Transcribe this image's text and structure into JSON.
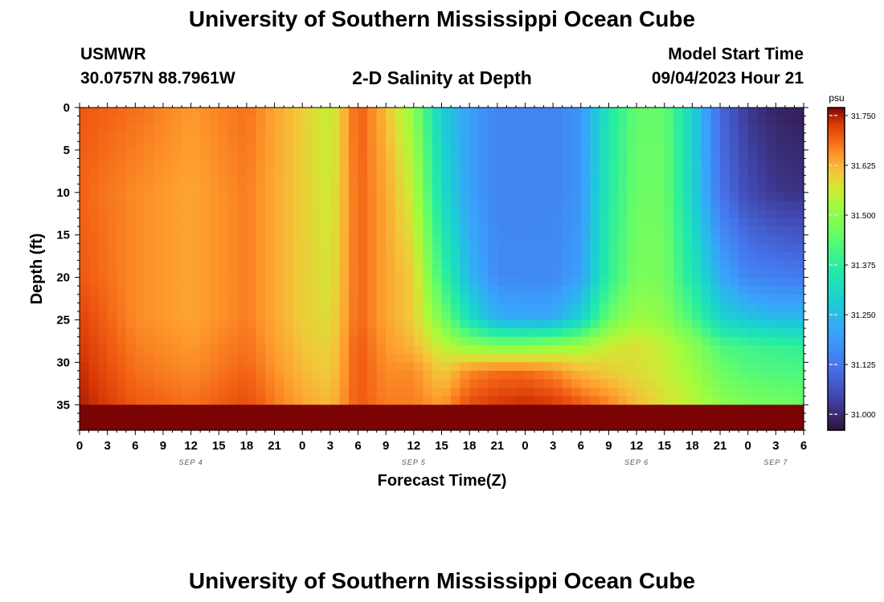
{
  "header": {
    "title_top": "University of Southern Mississippi Ocean Cube",
    "station_id": "USMWR",
    "coordinates": "30.0757N  88.7961W",
    "plot_title": "2-D Salinity at Depth",
    "model_start_label": "Model Start Time",
    "model_start_value": "09/04/2023 Hour 21"
  },
  "footer": {
    "title_bottom": "University of Southern Mississippi Ocean Cube"
  },
  "chart_data": {
    "type": "heatmap",
    "xlabel": "Forecast Time(Z)",
    "ylabel": "Depth (ft)",
    "colorbar_unit": "psu",
    "x_ticks": [
      "0",
      "3",
      "6",
      "9",
      "12",
      "15",
      "18",
      "21",
      "0",
      "3",
      "6",
      "9",
      "12",
      "15",
      "18",
      "21",
      "0",
      "3",
      "6",
      "9",
      "12",
      "15",
      "18",
      "21",
      "0",
      "3",
      "6"
    ],
    "date_labels": [
      {
        "label": "SEP 4",
        "tick": 4
      },
      {
        "label": "SEP 5",
        "tick": 12
      },
      {
        "label": "SEP 6",
        "tick": 20
      },
      {
        "label": "SEP 7",
        "tick": 25
      }
    ],
    "y_ticks": [
      "0",
      "5",
      "10",
      "15",
      "20",
      "25",
      "30",
      "35"
    ],
    "y_range": [
      0,
      38
    ],
    "colorbar_ticks": [
      "31.000",
      "31.125",
      "31.250",
      "31.375",
      "31.500",
      "31.625",
      "31.750"
    ],
    "value_range": [
      30.96,
      31.77
    ],
    "depths_ft": [
      0,
      10,
      20,
      25,
      28,
      31,
      35,
      38
    ],
    "times_h": [
      0,
      6,
      12,
      18,
      24,
      27,
      30,
      33,
      36,
      39,
      42,
      45,
      48,
      51,
      54,
      57,
      60,
      63,
      66,
      69,
      72,
      75,
      78
    ],
    "salinity_psu": [
      [
        31.7,
        31.69,
        31.7,
        31.72,
        31.73,
        31.74,
        31.75
      ],
      [
        31.68,
        31.66,
        31.66,
        31.66,
        31.67,
        31.68,
        31.7
      ],
      [
        31.65,
        31.64,
        31.64,
        31.64,
        31.65,
        31.66,
        31.68
      ],
      [
        31.68,
        31.67,
        31.67,
        31.67,
        31.68,
        31.69,
        31.71
      ],
      [
        31.6,
        31.6,
        31.6,
        31.6,
        31.61,
        31.62,
        31.64
      ],
      [
        31.55,
        31.56,
        31.57,
        31.58,
        31.59,
        31.6,
        31.62
      ],
      [
        31.7,
        31.69,
        31.69,
        31.69,
        31.7,
        31.7,
        31.7
      ],
      [
        31.62,
        31.64,
        31.64,
        31.64,
        31.65,
        31.66,
        31.67
      ],
      [
        31.5,
        31.55,
        31.6,
        31.6,
        31.62,
        31.66,
        31.67
      ],
      [
        31.28,
        31.32,
        31.4,
        31.48,
        31.55,
        31.6,
        31.65
      ],
      [
        31.2,
        31.2,
        31.24,
        31.33,
        31.5,
        31.66,
        31.71
      ],
      [
        31.15,
        31.15,
        31.16,
        31.23,
        31.48,
        31.68,
        31.73
      ],
      [
        31.15,
        31.15,
        31.16,
        31.22,
        31.48,
        31.68,
        31.74
      ],
      [
        31.15,
        31.15,
        31.16,
        31.22,
        31.5,
        31.66,
        31.73
      ],
      [
        31.18,
        31.18,
        31.2,
        31.3,
        31.52,
        31.62,
        31.7
      ],
      [
        31.35,
        31.36,
        31.38,
        31.46,
        31.56,
        31.6,
        31.67
      ],
      [
        31.45,
        31.46,
        31.48,
        31.52,
        31.58,
        31.58,
        31.62
      ],
      [
        31.45,
        31.46,
        31.47,
        31.5,
        31.55,
        31.56,
        31.58
      ],
      [
        31.3,
        31.3,
        31.35,
        31.42,
        31.5,
        31.52,
        31.55
      ],
      [
        31.1,
        31.12,
        31.22,
        31.3,
        31.42,
        31.46,
        31.5
      ],
      [
        31.02,
        31.05,
        31.15,
        31.27,
        31.4,
        31.43,
        31.48
      ],
      [
        30.99,
        31.02,
        31.14,
        31.25,
        31.39,
        31.42,
        31.47
      ],
      [
        30.98,
        31.01,
        31.13,
        31.25,
        31.38,
        31.42,
        31.46
      ]
    ]
  }
}
